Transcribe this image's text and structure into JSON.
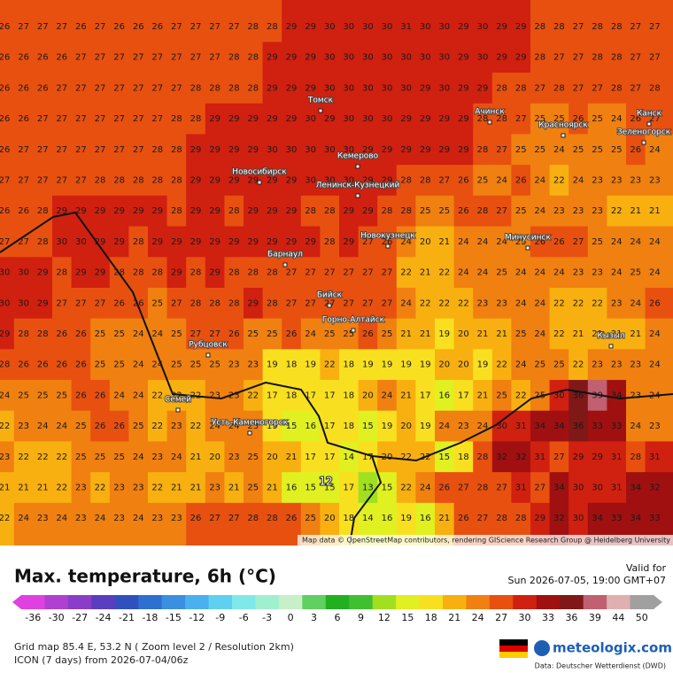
{
  "map": {
    "grid": [
      [
        26,
        27,
        27,
        27,
        26,
        27,
        26,
        26,
        26,
        27,
        27,
        27,
        27,
        28,
        28,
        29,
        29,
        30,
        30,
        30,
        30,
        31,
        30,
        30,
        29,
        30,
        29,
        29,
        28,
        28,
        27,
        28,
        28,
        27,
        27
      ],
      [
        26,
        26,
        26,
        26,
        27,
        27,
        27,
        27,
        27,
        27,
        27,
        27,
        28,
        28,
        29,
        29,
        29,
        30,
        30,
        30,
        30,
        30,
        30,
        30,
        29,
        30,
        29,
        29,
        28,
        27,
        27,
        28,
        28,
        27,
        27
      ],
      [
        26,
        26,
        26,
        27,
        27,
        27,
        27,
        27,
        27,
        27,
        28,
        28,
        28,
        28,
        29,
        29,
        29,
        30,
        30,
        30,
        30,
        30,
        29,
        30,
        29,
        29,
        28,
        28,
        27,
        28,
        27,
        27,
        28,
        27,
        28
      ],
      [
        26,
        26,
        27,
        27,
        27,
        27,
        27,
        27,
        27,
        28,
        28,
        29,
        29,
        29,
        29,
        29,
        30,
        29,
        30,
        30,
        30,
        29,
        29,
        29,
        29,
        28,
        28,
        27,
        25,
        25,
        26,
        25,
        24,
        26,
        27
      ],
      [
        26,
        27,
        27,
        27,
        27,
        27,
        27,
        27,
        28,
        28,
        29,
        29,
        29,
        29,
        30,
        30,
        30,
        30,
        30,
        29,
        29,
        29,
        29,
        29,
        29,
        28,
        27,
        25,
        25,
        24,
        25,
        25,
        25,
        26,
        24
      ],
      [
        27,
        27,
        27,
        27,
        27,
        28,
        28,
        28,
        28,
        28,
        29,
        29,
        29,
        29,
        29,
        29,
        30,
        30,
        30,
        29,
        29,
        28,
        28,
        27,
        26,
        25,
        24,
        26,
        24,
        22,
        24,
        23,
        23,
        23,
        23
      ],
      [
        26,
        26,
        28,
        29,
        29,
        29,
        29,
        29,
        29,
        28,
        29,
        29,
        28,
        29,
        29,
        29,
        28,
        28,
        29,
        29,
        28,
        28,
        25,
        25,
        26,
        28,
        27,
        25,
        24,
        23,
        23,
        23,
        22,
        21,
        21
      ],
      [
        27,
        27,
        28,
        30,
        30,
        29,
        29,
        28,
        29,
        29,
        29,
        29,
        29,
        29,
        29,
        29,
        29,
        28,
        29,
        27,
        26,
        24,
        20,
        21,
        24,
        24,
        24,
        25,
        26,
        26,
        27,
        25,
        24,
        24,
        24
      ],
      [
        30,
        30,
        29,
        28,
        29,
        29,
        28,
        28,
        28,
        29,
        28,
        29,
        28,
        28,
        28,
        27,
        27,
        27,
        27,
        27,
        27,
        22,
        21,
        22,
        24,
        24,
        25,
        24,
        24,
        24,
        23,
        23,
        24,
        25,
        24
      ],
      [
        30,
        30,
        29,
        27,
        27,
        27,
        26,
        26,
        25,
        27,
        28,
        28,
        28,
        29,
        28,
        27,
        27,
        27,
        27,
        27,
        27,
        24,
        22,
        22,
        22,
        23,
        23,
        24,
        24,
        22,
        22,
        22,
        23,
        24,
        26
      ],
      [
        29,
        28,
        28,
        26,
        26,
        25,
        25,
        24,
        24,
        25,
        27,
        27,
        26,
        25,
        25,
        26,
        24,
        25,
        25,
        26,
        25,
        21,
        21,
        19,
        20,
        21,
        21,
        25,
        24,
        22,
        21,
        21,
        21,
        21,
        24
      ],
      [
        28,
        26,
        26,
        26,
        26,
        25,
        25,
        24,
        24,
        25,
        25,
        25,
        23,
        23,
        19,
        18,
        19,
        22,
        18,
        19,
        19,
        19,
        19,
        20,
        20,
        19,
        22,
        24,
        25,
        25,
        22,
        23,
        23,
        23,
        24
      ],
      [
        24,
        25,
        25,
        25,
        26,
        26,
        24,
        24,
        22,
        22,
        22,
        23,
        23,
        22,
        17,
        18,
        17,
        17,
        18,
        20,
        24,
        21,
        17,
        16,
        17,
        21,
        25,
        22,
        25,
        30,
        36,
        39,
        34,
        23,
        24
      ],
      [
        22,
        23,
        24,
        24,
        25,
        26,
        26,
        25,
        22,
        23,
        22,
        24,
        24,
        23,
        19,
        15,
        16,
        17,
        18,
        15,
        19,
        20,
        19,
        24,
        23,
        24,
        30,
        31,
        34,
        34,
        36,
        33,
        33,
        24,
        23
      ],
      [
        23,
        22,
        22,
        22,
        25,
        25,
        25,
        24,
        23,
        24,
        21,
        20,
        23,
        25,
        20,
        21,
        17,
        17,
        14,
        17,
        20,
        22,
        22,
        15,
        18,
        28,
        32,
        32,
        31,
        27,
        29,
        29,
        31,
        28,
        31
      ],
      [
        21,
        21,
        21,
        22,
        23,
        22,
        23,
        23,
        22,
        21,
        21,
        23,
        21,
        25,
        21,
        16,
        15,
        15,
        17,
        13,
        15,
        22,
        24,
        26,
        27,
        28,
        27,
        31,
        27,
        34,
        30,
        30,
        31,
        34,
        32
      ],
      [
        22,
        24,
        23,
        24,
        23,
        24,
        23,
        24,
        23,
        23,
        26,
        27,
        27,
        28,
        28,
        26,
        25,
        20,
        18,
        14,
        16,
        19,
        16,
        21,
        26,
        27,
        28,
        28,
        29,
        32,
        30,
        34,
        33,
        34,
        33
      ]
    ],
    "cities": [
      "Томск",
      "Ачинск",
      "Канск",
      "Красноярск",
      "Зеленогорск",
      "Кемерово",
      "Новосибирск",
      "Ленинск-Кузнецкий",
      "Новокузнецк",
      "Минусинск",
      "Барнаул",
      "Бийск",
      "Горно-Алтайск",
      "Кызыл",
      "Рубцовск",
      "Семей",
      "Усть-Каменогорск"
    ],
    "route_label": "12",
    "attribution": "Map data © OpenStreetMap contributors, rendering GIScience Research Group @ Heidelberg University"
  },
  "legend": {
    "title": "Max. temperature, 6h (°C)",
    "valid_label": "Valid for",
    "valid_time": "Sun 2026-07-05, 19:00 GMT+07",
    "ticks": [
      -36,
      -30,
      -27,
      -24,
      -21,
      -18,
      -15,
      -12,
      -9,
      -6,
      -3,
      0,
      3,
      6,
      9,
      12,
      15,
      18,
      21,
      24,
      27,
      30,
      33,
      36,
      39,
      44,
      50
    ],
    "colors": [
      "#e040e0",
      "#b040d0",
      "#8a3dc8",
      "#5a3ec0",
      "#3050c0",
      "#2f6fd0",
      "#3a8fe0",
      "#4ab0f0",
      "#60d0f0",
      "#80e8e8",
      "#a0f0d0",
      "#c8f0c8",
      "#60d060",
      "#20b020",
      "#40c030",
      "#a0e020",
      "#e0f020",
      "#f8e020",
      "#f8b010",
      "#f08010",
      "#e85010",
      "#d02010",
      "#a01010",
      "#801818",
      "#c06070",
      "#e0b0b0",
      "#a0a0a0"
    ]
  },
  "footer": {
    "grid_info": "Grid map 85.4 E, 53.2 N ( Zoom level 2 / Resolution 2km)",
    "model": "ICON (7 days) from 2026-07-04/06z",
    "brand": "meteologix.com",
    "source": "Data: Deutscher Wetterdienst (DWD)"
  }
}
